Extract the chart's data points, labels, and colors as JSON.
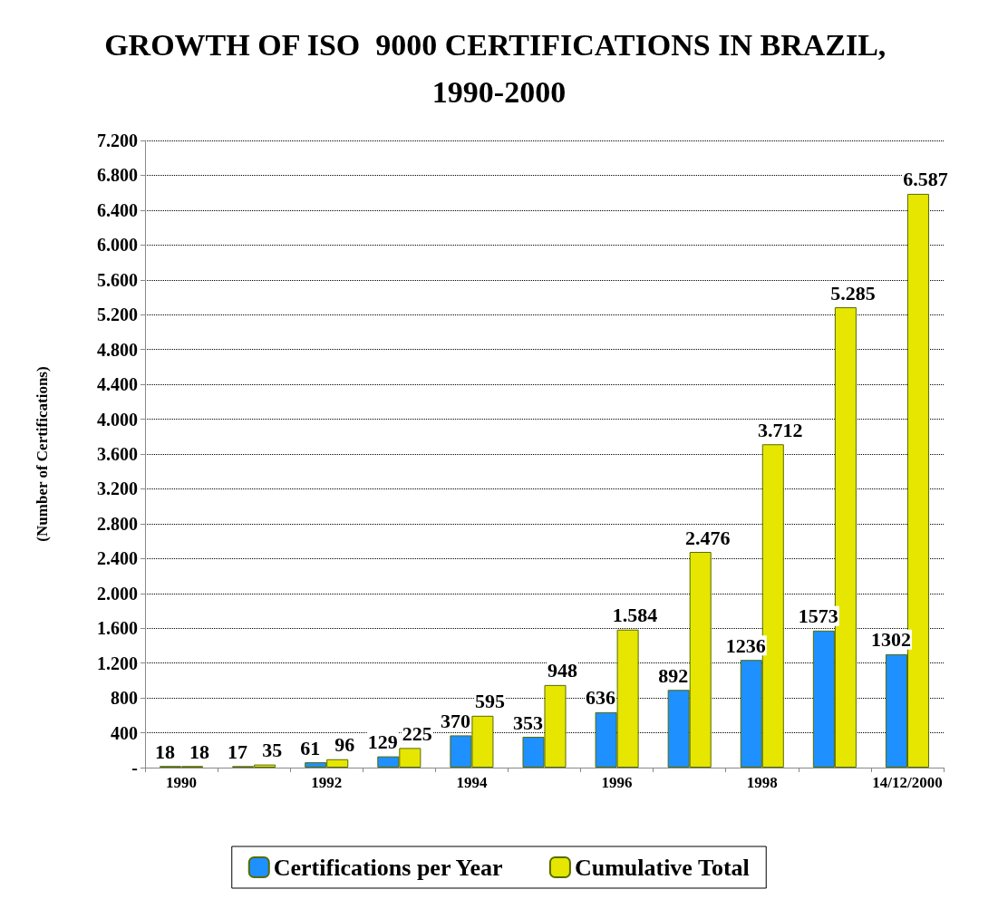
{
  "chart_data": {
    "type": "bar",
    "title": "GROWTH OF ISO  9000 CERTIFICATIONS IN BRAZIL, 1990-2000",
    "ylabel": "(Number of Certifications)",
    "categories": [
      "1990",
      null,
      "1992",
      null,
      "1994",
      null,
      "1996",
      null,
      "1998",
      null,
      "14/12/2000"
    ],
    "series": [
      {
        "name": "Certifications per Year",
        "color": "#1e90ff",
        "values": [
          18,
          17,
          61,
          129,
          370,
          353,
          636,
          892,
          1236,
          1573,
          1302
        ],
        "value_labels": [
          "18",
          "17",
          "61",
          "129",
          "370",
          "353",
          "636",
          "892",
          "1236",
          "1573",
          "1302"
        ]
      },
      {
        "name": "Cumulative Total",
        "color": "#e6e600",
        "values": [
          18,
          35,
          96,
          225,
          595,
          948,
          1584,
          2476,
          3712,
          5285,
          6587
        ],
        "value_labels": [
          "18",
          "35",
          "96",
          "225",
          "595",
          "948",
          "1.584",
          "2.476",
          "3.712",
          "5.285",
          "6.587"
        ]
      }
    ],
    "ylim": [
      0,
      7200
    ],
    "yticks": [
      {
        "value": 0,
        "label": "-"
      },
      {
        "value": 400,
        "label": "400"
      },
      {
        "value": 800,
        "label": "800"
      },
      {
        "value": 1200,
        "label": "1.200"
      },
      {
        "value": 1600,
        "label": "1.600"
      },
      {
        "value": 2000,
        "label": "2.000"
      },
      {
        "value": 2400,
        "label": "2.400"
      },
      {
        "value": 2800,
        "label": "2.800"
      },
      {
        "value": 3200,
        "label": "3.200"
      },
      {
        "value": 3600,
        "label": "3.600"
      },
      {
        "value": 4000,
        "label": "4.000"
      },
      {
        "value": 4400,
        "label": "4.400"
      },
      {
        "value": 4800,
        "label": "4.800"
      },
      {
        "value": 5200,
        "label": "5.200"
      },
      {
        "value": 5600,
        "label": "5.600"
      },
      {
        "value": 6000,
        "label": "6.000"
      },
      {
        "value": 6400,
        "label": "6.400"
      },
      {
        "value": 6800,
        "label": "6.800"
      },
      {
        "value": 7200,
        "label": "7.200"
      }
    ],
    "grid": "y",
    "legend": "bottom"
  }
}
